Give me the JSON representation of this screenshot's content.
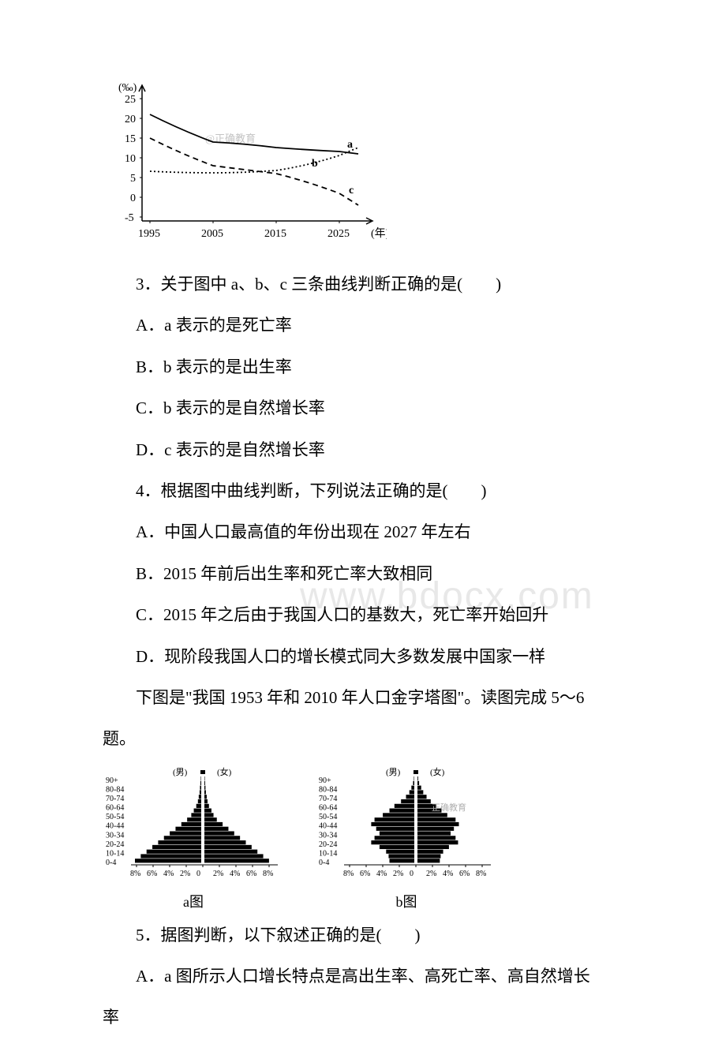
{
  "chart1": {
    "type": "line",
    "ylabel": "(‰)",
    "xlabel": "(年)",
    "xlim": [
      1995,
      2030
    ],
    "xticks": [
      1995,
      2005,
      2015,
      2025
    ],
    "ylim": [
      -5,
      25
    ],
    "yticks": [
      -5,
      0,
      5,
      10,
      15,
      20,
      25
    ],
    "grid": false,
    "background_color": "#ffffff",
    "axis_color": "#000000",
    "watermark_text": "@正确教育",
    "watermark_color": "#c4c4c4",
    "font_size": 14,
    "series": [
      {
        "label": "a",
        "color": "#000000",
        "line_width": 1.8,
        "dash": "solid",
        "x": [
          1995,
          2000,
          2005,
          2010,
          2015,
          2020,
          2025,
          2028
        ],
        "y": [
          21,
          17,
          14,
          13.5,
          12.5,
          12,
          11.5,
          11
        ]
      },
      {
        "label": "b",
        "color": "#000000",
        "line_width": 1.8,
        "dash": "dotted",
        "x": [
          1995,
          2000,
          2005,
          2010,
          2015,
          2020,
          2025,
          2028
        ],
        "y": [
          6.5,
          6.2,
          6.1,
          6.2,
          6.8,
          8,
          10.5,
          12.5
        ]
      },
      {
        "label": "c",
        "color": "#000000",
        "line_width": 1.8,
        "dash": "dashed",
        "x": [
          1995,
          2000,
          2005,
          2010,
          2015,
          2020,
          2025,
          2028
        ],
        "y": [
          15,
          11,
          8,
          7,
          6,
          4,
          1,
          -2
        ]
      }
    ]
  },
  "q3": {
    "stem": "3．关于图中 a、b、c 三条曲线判断正确的是(　　)",
    "a": "A．a 表示的是死亡率",
    "b": "B．b 表示的是出生率",
    "c": "C．b 表示的是自然增长率",
    "d": "D．c 表示的是自然增长率"
  },
  "q4": {
    "stem": "4．根据图中曲线判断，下列说法正确的是(　　)",
    "a": "A．中国人口最高值的年份出现在 2027 年左右",
    "b": "B．2015 年前后出生率和死亡率大致相同",
    "c": "C．2015 年之后由于我国人口的基数大，死亡率开始回升",
    "d": "D．现阶段我国人口的增长模式同大多数发展中国家一样"
  },
  "intro56": "下图是\"我国 1953 年和 2010 年人口金字塔图\"。读图完成 5～6",
  "intro56_2": "题。",
  "pyramids": {
    "type": "population-pyramid",
    "font_size": 12,
    "bar_color": "#000000",
    "axis_color": "#000000",
    "background_color": "#ffffff",
    "age_labels": [
      "0-4",
      "10-14",
      "20-24",
      "30-34",
      "40-44",
      "50-54",
      "60-64",
      "70-74",
      "80-84",
      "90+"
    ],
    "x_labels": [
      "8%",
      "6%",
      "4%",
      "2%",
      "0",
      "2%",
      "4%",
      "6%",
      "8%"
    ],
    "male_label": "(男)",
    "female_label": "(女)",
    "watermark_text": "正确教育",
    "a": {
      "caption": "a图",
      "male": [
        8.0,
        7.3,
        6.6,
        5.9,
        5.2,
        4.5,
        3.8,
        3.1,
        2.4,
        1.7,
        1.2,
        0.9,
        0.6,
        0.4,
        0.3,
        0.2,
        0.15,
        0.1,
        0.05
      ],
      "female": [
        7.8,
        7.1,
        6.4,
        5.7,
        5.0,
        4.3,
        3.6,
        2.9,
        2.2,
        1.5,
        1.1,
        0.85,
        0.55,
        0.38,
        0.28,
        0.18,
        0.13,
        0.09,
        0.05
      ]
    },
    "b": {
      "caption": "b图",
      "male": [
        3.0,
        3.1,
        3.4,
        4.2,
        5.2,
        4.8,
        4.2,
        4.6,
        5.2,
        4.8,
        3.8,
        3.0,
        2.4,
        1.6,
        1.0,
        0.6,
        0.35,
        0.15,
        0.05
      ],
      "female": [
        2.7,
        2.8,
        3.1,
        3.8,
        4.9,
        4.6,
        4.0,
        4.4,
        5.0,
        4.6,
        3.6,
        2.9,
        2.3,
        1.6,
        1.1,
        0.7,
        0.45,
        0.2,
        0.08
      ]
    }
  },
  "q5": {
    "stem": "5．据图判断，以下叙述正确的是(　　)",
    "a": "A．a 图所示人口增长特点是高出生率、高死亡率、高自然增长",
    "a2": "率"
  },
  "watermark_bg": "www.bdocx.com"
}
